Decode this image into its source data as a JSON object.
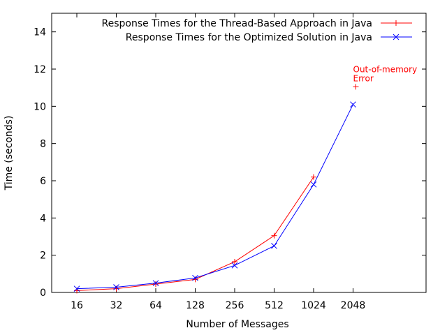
{
  "chart_data": {
    "type": "line",
    "xlabel": "Number of Messages",
    "ylabel": "Time (seconds)",
    "categories": [
      "16",
      "32",
      "64",
      "128",
      "256",
      "512",
      "1024",
      "2048"
    ],
    "ylim": [
      0,
      15
    ],
    "yticks": [
      "0",
      "2",
      "4",
      "6",
      "8",
      "10",
      "12",
      "14"
    ],
    "legend_position": "top-right",
    "grid": false,
    "series": [
      {
        "name": "Response Times for the Thread-Based Approach in Java",
        "color": "#ff0000",
        "marker": "plus",
        "values": [
          0.1,
          0.2,
          0.45,
          0.7,
          1.65,
          3.05,
          6.2,
          null
        ]
      },
      {
        "name": "Response Times for the Optimized Solution in Java",
        "color": "#0000ff",
        "marker": "cross",
        "values": [
          0.2,
          0.28,
          0.5,
          0.78,
          1.45,
          2.5,
          5.8,
          10.1
        ]
      }
    ],
    "annotations": [
      {
        "text_lines": [
          "Out-of-memory",
          "Error"
        ],
        "color": "#ff0000",
        "marker_point": {
          "category": "2048",
          "y": 11.05
        }
      }
    ]
  }
}
